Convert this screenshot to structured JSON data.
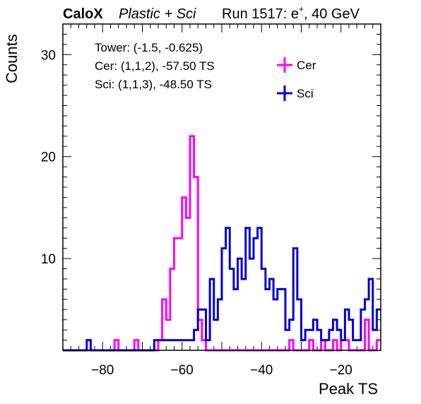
{
  "chart_data": {
    "type": "histogram",
    "header": {
      "experiment": "CaloX",
      "config": "Plastic + Sci",
      "run_prefix": "Run 1517: e",
      "run_sup": "+",
      "run_suffix": ", 40 GeV"
    },
    "xlabel": "Peak TS",
    "ylabel": "Counts",
    "xlim": [
      -90,
      -10
    ],
    "ylim": [
      1,
      33
    ],
    "x_ticks": [
      -80,
      -60,
      -40,
      -20
    ],
    "x_tick_labels": [
      "−80",
      "−60",
      "−40",
      "−20"
    ],
    "y_ticks": [
      10,
      20,
      30
    ],
    "y_tick_labels": [
      "10",
      "20",
      "30"
    ],
    "bin_width": 1,
    "annotations": [
      "Tower: (-1.5, -0.625)",
      "Cer: (1,1,2), -57.50 TS",
      "Sci: (1,1,3), -48.50 TS"
    ],
    "legend_position": "top-right",
    "series": [
      {
        "name": "Cer",
        "color": "#ff00ff",
        "bins": [
          [
            -77,
            2
          ],
          [
            -72,
            2
          ],
          [
            -66,
            2
          ],
          [
            -65,
            6
          ],
          [
            -64,
            4
          ],
          [
            -63,
            9
          ],
          [
            -62,
            12
          ],
          [
            -61,
            12
          ],
          [
            -60,
            16
          ],
          [
            -59,
            14
          ],
          [
            -58,
            22
          ],
          [
            -57,
            18
          ],
          [
            -56,
            4
          ],
          [
            -55,
            2
          ],
          [
            -33,
            2
          ],
          [
            -28,
            2
          ],
          [
            -25,
            2
          ],
          [
            -22,
            2
          ],
          [
            -20,
            2
          ],
          [
            -19,
            2
          ],
          [
            -14,
            4
          ],
          [
            -11,
            2
          ]
        ]
      },
      {
        "name": "Sci",
        "color": "#0000dd",
        "bins": [
          [
            -84,
            2
          ],
          [
            -67,
            2
          ],
          [
            -66,
            2
          ],
          [
            -65,
            2
          ],
          [
            -64,
            2
          ],
          [
            -63,
            2
          ],
          [
            -62,
            2
          ],
          [
            -61,
            2
          ],
          [
            -60,
            2
          ],
          [
            -59,
            2
          ],
          [
            -58,
            2
          ],
          [
            -57,
            3
          ],
          [
            -56,
            5
          ],
          [
            -55,
            5
          ],
          [
            -54,
            2
          ],
          [
            -53,
            8
          ],
          [
            -52,
            4
          ],
          [
            -51,
            6
          ],
          [
            -50,
            11
          ],
          [
            -49,
            13
          ],
          [
            -48,
            9
          ],
          [
            -47,
            7
          ],
          [
            -46,
            10
          ],
          [
            -45,
            8
          ],
          [
            -44,
            13
          ],
          [
            -43,
            10
          ],
          [
            -42,
            12
          ],
          [
            -41,
            13
          ],
          [
            -40,
            9
          ],
          [
            -39,
            7
          ],
          [
            -38,
            8
          ],
          [
            -37,
            6
          ],
          [
            -36,
            7
          ],
          [
            -35,
            7
          ],
          [
            -34,
            3
          ],
          [
            -33,
            4
          ],
          [
            -32,
            11
          ],
          [
            -31,
            6
          ],
          [
            -30,
            2
          ],
          [
            -29,
            3
          ],
          [
            -28,
            3
          ],
          [
            -27,
            4
          ],
          [
            -26,
            3
          ],
          [
            -25,
            2
          ],
          [
            -24,
            2
          ],
          [
            -23,
            3
          ],
          [
            -22,
            4
          ],
          [
            -21,
            3
          ],
          [
            -20,
            2
          ],
          [
            -19,
            5
          ],
          [
            -18,
            4
          ],
          [
            -17,
            2
          ],
          [
            -16,
            2
          ],
          [
            -15,
            5
          ],
          [
            -14,
            6
          ],
          [
            -13,
            8
          ],
          [
            -12,
            3
          ],
          [
            -11,
            5
          ]
        ]
      }
    ]
  }
}
